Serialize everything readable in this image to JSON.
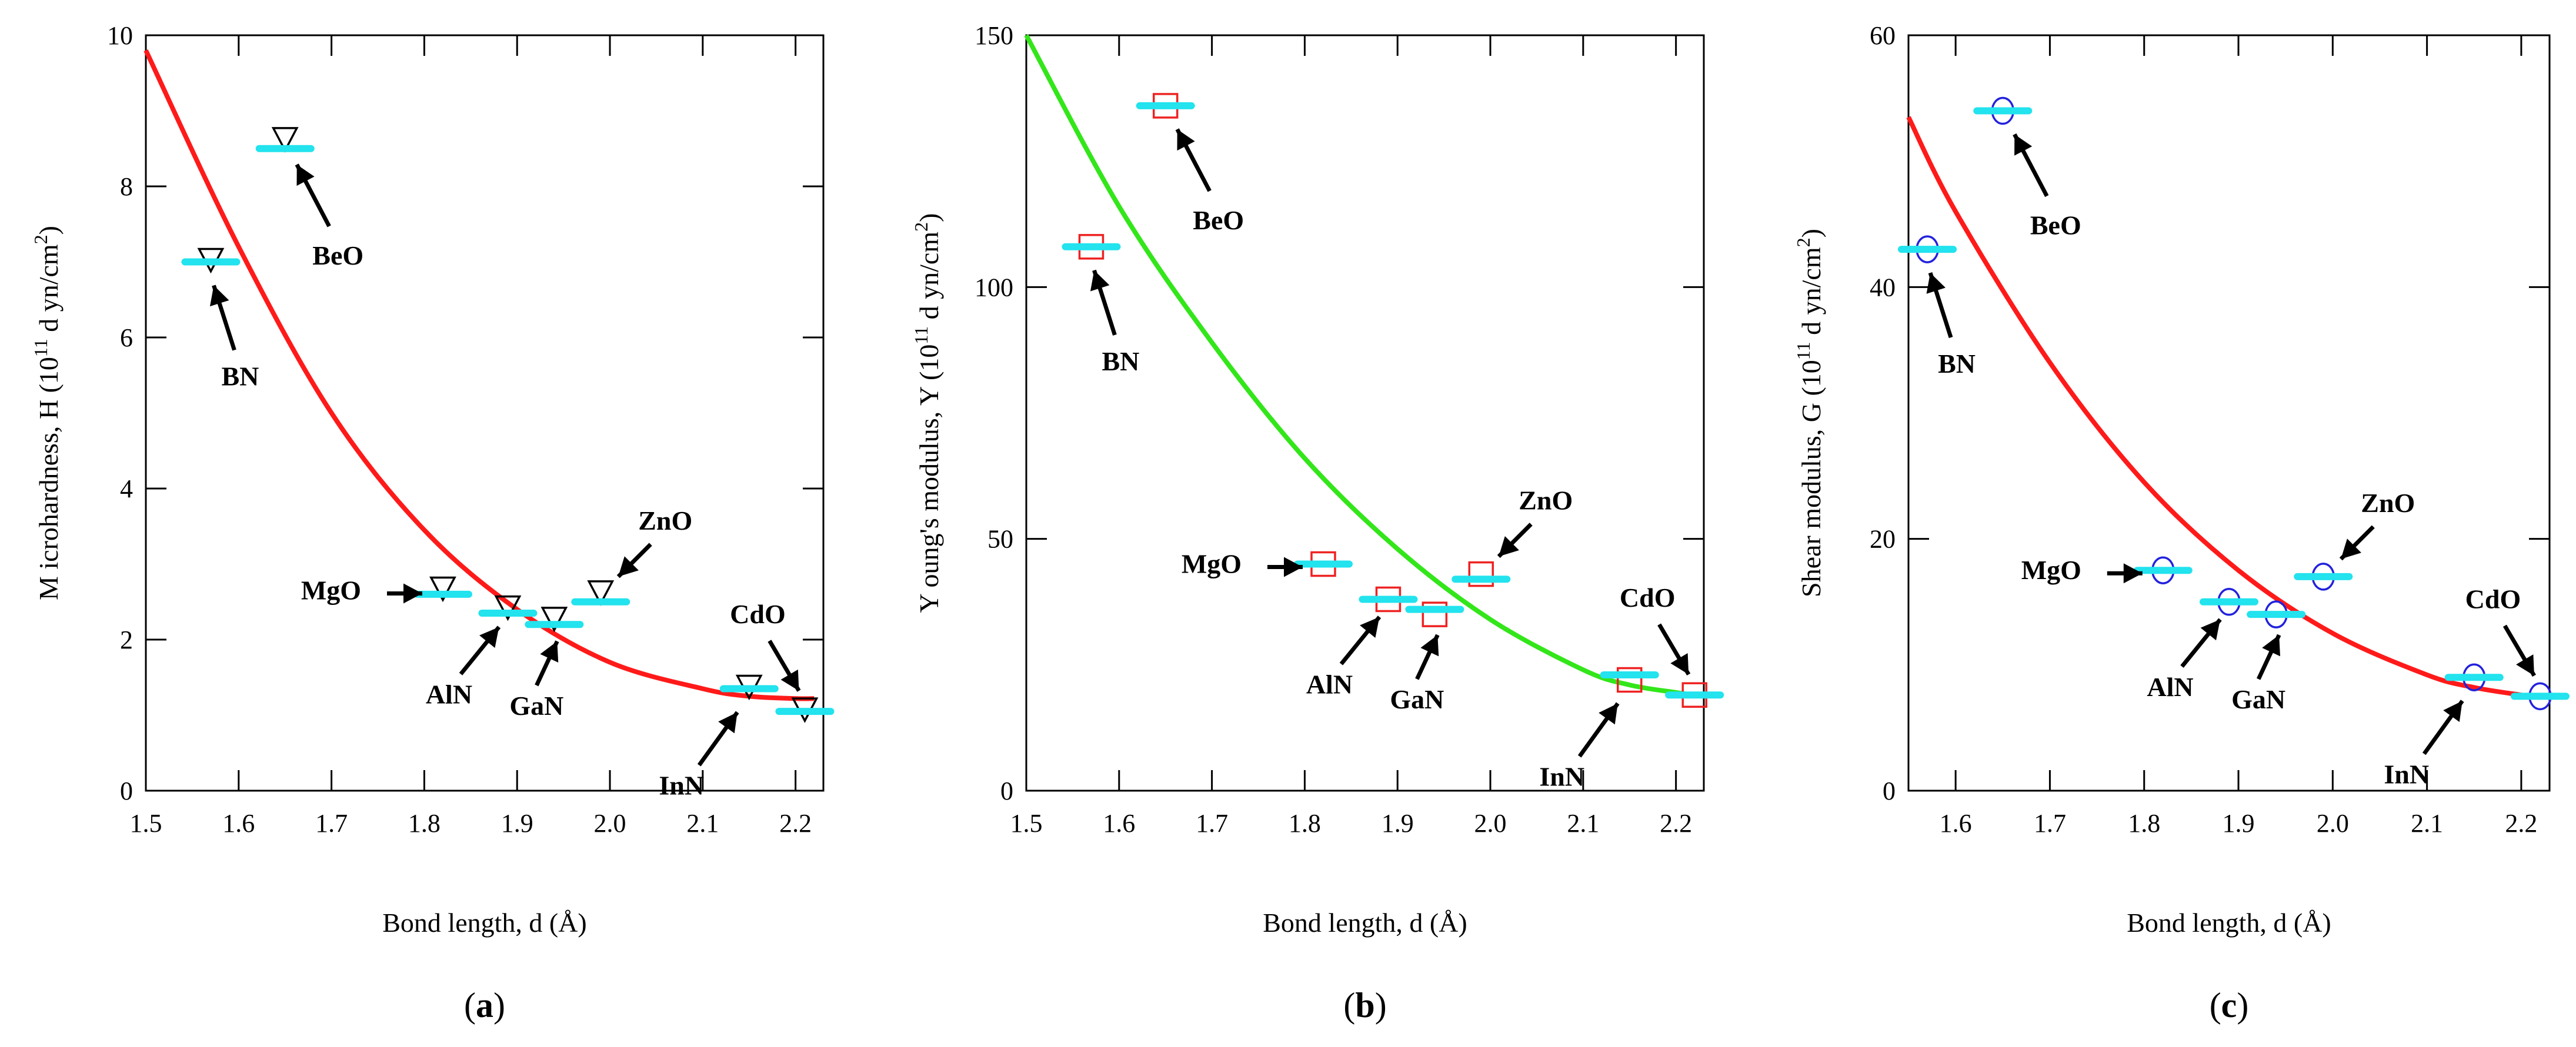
{
  "colors": {
    "fit_red": "#ff1a1a",
    "fit_green": "#33e61a",
    "model_cyan": "#22e3ee",
    "marker_black": "#000000",
    "marker_red": "#ee2222",
    "marker_blue": "#2222dd"
  },
  "chart_data": [
    {
      "panel": "(a)",
      "panel_letter": "a",
      "type": "scatter",
      "xlabel": "Bond length, d (Å)",
      "ylabel_parts": {
        "main": "M icrohardness, H  (10",
        "sup1": "11",
        "mid": " d yn/cm",
        "sup2": "2",
        "end": ")"
      },
      "xlim": [
        1.5,
        2.23
      ],
      "ylim": [
        0,
        10
      ],
      "xticks": [
        1.5,
        1.6,
        1.7,
        1.8,
        1.9,
        2.0,
        2.1,
        2.2
      ],
      "xtick_labels": [
        "1.5",
        "1.6",
        "1.7",
        "1.8",
        "1.9",
        "2.0",
        "2.1",
        "2.2"
      ],
      "yticks": [
        0,
        2,
        4,
        6,
        8,
        10
      ],
      "ytick_labels": [
        "0",
        "2",
        "4",
        "6",
        "8",
        "10"
      ],
      "marker": "triangle-down",
      "fit_curve": {
        "x": [
          1.5,
          1.6,
          1.7,
          1.8,
          1.9,
          2.0,
          2.1,
          2.15,
          2.2,
          2.22
        ],
        "y": [
          9.8,
          7.2,
          5.0,
          3.45,
          2.4,
          1.7,
          1.35,
          1.25,
          1.22,
          1.22
        ]
      },
      "points": [
        {
          "label": "BN",
          "x": 1.57,
          "y_marker": 7.0,
          "y_model": 7.0
        },
        {
          "label": "BeO",
          "x": 1.65,
          "y_marker": 8.6,
          "y_model": 8.5
        },
        {
          "label": "MgO",
          "x": 1.82,
          "y_marker": 2.65,
          "y_model": 2.6
        },
        {
          "label": "AlN",
          "x": 1.89,
          "y_marker": 2.4,
          "y_model": 2.35
        },
        {
          "label": "GaN",
          "x": 1.94,
          "y_marker": 2.25,
          "y_model": 2.2
        },
        {
          "label": "ZnO",
          "x": 1.99,
          "y_marker": 2.6,
          "y_model": 2.5
        },
        {
          "label": "InN",
          "x": 2.15,
          "y_marker": 1.35,
          "y_model": 1.35
        },
        {
          "label": "CdO",
          "x": 2.21,
          "y_marker": 1.05,
          "y_model": 1.05
        }
      ]
    },
    {
      "panel": "(b)",
      "panel_letter": "b",
      "type": "scatter",
      "xlabel": "Bond length, d (Å)",
      "ylabel_parts": {
        "main": "Y oung's modulus, Y (10",
        "sup1": "11",
        "mid": " d yn/cm",
        "sup2": "2",
        "end": ")"
      },
      "xlim": [
        1.5,
        2.23
      ],
      "ylim": [
        0,
        150
      ],
      "xticks": [
        1.5,
        1.6,
        1.7,
        1.8,
        1.9,
        2.0,
        2.1,
        2.2
      ],
      "xtick_labels": [
        "1.5",
        "1.6",
        "1.7",
        "1.8",
        "1.9",
        "2.0",
        "2.1",
        "2.2"
      ],
      "yticks": [
        0,
        50,
        100,
        150
      ],
      "ytick_labels": [
        "0",
        "50",
        "100",
        "150"
      ],
      "marker": "square",
      "fit_curve": {
        "x": [
          1.5,
          1.6,
          1.7,
          1.8,
          1.9,
          2.0,
          2.1,
          2.15,
          2.2,
          2.22
        ],
        "y": [
          150,
          116,
          89,
          66,
          48,
          34,
          24,
          21,
          19.5,
          19
        ]
      },
      "points": [
        {
          "label": "BN",
          "x": 1.57,
          "y_marker": 108,
          "y_model": 108
        },
        {
          "label": "BeO",
          "x": 1.65,
          "y_marker": 136,
          "y_model": 136
        },
        {
          "label": "MgO",
          "x": 1.82,
          "y_marker": 45,
          "y_model": 45
        },
        {
          "label": "AlN",
          "x": 1.89,
          "y_marker": 38,
          "y_model": 38
        },
        {
          "label": "GaN",
          "x": 1.94,
          "y_marker": 35,
          "y_model": 36
        },
        {
          "label": "ZnO",
          "x": 1.99,
          "y_marker": 43,
          "y_model": 42
        },
        {
          "label": "InN",
          "x": 2.15,
          "y_marker": 22,
          "y_model": 23
        },
        {
          "label": "CdO",
          "x": 2.22,
          "y_marker": 19,
          "y_model": 19
        }
      ]
    },
    {
      "panel": "(c)",
      "panel_letter": "c",
      "type": "scatter",
      "xlabel": "Bond length, d (Å)",
      "ylabel_parts": {
        "main": "Shear modulus, G  (10",
        "sup1": "11",
        "mid": " d yn/cm",
        "sup2": "2",
        "end": ")"
      },
      "xlim": [
        1.55,
        2.23
      ],
      "ylim": [
        0,
        60
      ],
      "xticks": [
        1.6,
        1.7,
        1.8,
        1.9,
        2.0,
        2.1,
        2.2
      ],
      "xtick_labels": [
        "1.6",
        "1.7",
        "1.8",
        "1.9",
        "2.0",
        "2.1",
        "2.2"
      ],
      "yticks": [
        0,
        20,
        40,
        60
      ],
      "ytick_labels": [
        "0",
        "20",
        "40",
        "60"
      ],
      "marker": "circle",
      "fit_curve": {
        "x": [
          1.55,
          1.6,
          1.7,
          1.8,
          1.9,
          2.0,
          2.1,
          2.15,
          2.2,
          2.22
        ],
        "y": [
          53.5,
          46,
          34,
          24.5,
          17.5,
          12.5,
          9.2,
          8.2,
          7.6,
          7.4
        ]
      },
      "points": [
        {
          "label": "BN",
          "x": 1.57,
          "y_marker": 43,
          "y_model": 43
        },
        {
          "label": "BeO",
          "x": 1.65,
          "y_marker": 54,
          "y_model": 54
        },
        {
          "label": "MgO",
          "x": 1.82,
          "y_marker": 17.5,
          "y_model": 17.5
        },
        {
          "label": "AlN",
          "x": 1.89,
          "y_marker": 15,
          "y_model": 15
        },
        {
          "label": "GaN",
          "x": 1.94,
          "y_marker": 14,
          "y_model": 14
        },
        {
          "label": "ZnO",
          "x": 1.99,
          "y_marker": 17,
          "y_model": 17
        },
        {
          "label": "InN",
          "x": 2.15,
          "y_marker": 9,
          "y_model": 9
        },
        {
          "label": "CdO",
          "x": 2.22,
          "y_marker": 7.5,
          "y_model": 7.5
        }
      ]
    }
  ]
}
